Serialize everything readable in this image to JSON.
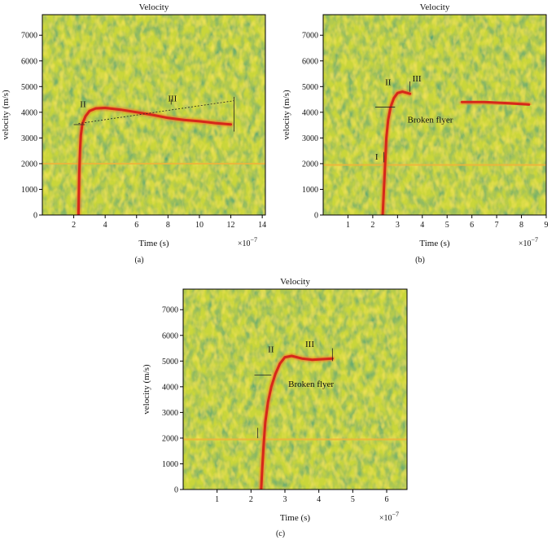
{
  "colors": {
    "noise_base": "#c9d63a",
    "noise_green": "#2f9f77",
    "noise_yellow": "#f3e45a",
    "trace": "#d6281a",
    "trace_light": "#ef7a2a",
    "constant_band": "#f0b43a",
    "axis": "#000000"
  },
  "chart_data": [
    {
      "type": "heatmap",
      "title": "Velocity",
      "xlabel": "Time (s)",
      "ylabel": "velocity (m/s)",
      "x_multiplier": "×10",
      "x_exponent": "−7",
      "panel_label": "(a)",
      "xlim": [
        0,
        14.2
      ],
      "ylim": [
        0,
        7800
      ],
      "xticks": [
        2,
        4,
        6,
        8,
        10,
        12,
        14
      ],
      "yticks": [
        0,
        1000,
        2000,
        3000,
        4000,
        5000,
        6000,
        7000
      ],
      "colormap": [
        "green",
        "yellow",
        "orange",
        "red"
      ],
      "constant_band_velocity": 2000,
      "series": [
        {
          "trace": [
            [
              2.3,
              0
            ],
            [
              2.32,
              700
            ],
            [
              2.35,
              1600
            ],
            [
              2.4,
              2500
            ],
            [
              2.45,
              3100
            ],
            [
              2.55,
              3550
            ],
            [
              2.75,
              3850
            ],
            [
              3.0,
              4050
            ],
            [
              3.4,
              4150
            ],
            [
              4.0,
              4170
            ],
            [
              5.0,
              4100
            ],
            [
              6.0,
              4000
            ],
            [
              7.0,
              3900
            ],
            [
              8.0,
              3780
            ],
            [
              9.0,
              3700
            ],
            [
              10.0,
              3650
            ],
            [
              11.0,
              3580
            ],
            [
              12.0,
              3530
            ]
          ]
        }
      ],
      "annotations": [
        {
          "text": "II",
          "x": 2.4,
          "y": 4200
        },
        {
          "text": "III",
          "x": 8.0,
          "y": 4420
        }
      ],
      "marker_lines": [
        {
          "x1": 2.0,
          "y1": 3520,
          "x2": 2.7,
          "y2": 3520
        },
        {
          "x1": 12.2,
          "y1": 3250,
          "x2": 12.2,
          "y2": 4600
        },
        {
          "x1": 2.3,
          "y1": 3560,
          "x2": 12.2,
          "y2": 4450
        },
        {
          "x1": 8.2,
          "y1": 4300,
          "x2": 8.2,
          "y2": 4500
        }
      ]
    },
    {
      "type": "heatmap",
      "title": "Velocity",
      "xlabel": "Time (s)",
      "ylabel": "velocity (m/s)",
      "x_multiplier": "×10",
      "x_exponent": "−7",
      "panel_label": "(b)",
      "xlim": [
        0,
        9
      ],
      "ylim": [
        0,
        7800
      ],
      "xticks": [
        1,
        2,
        3,
        4,
        5,
        6,
        7,
        8,
        9
      ],
      "yticks": [
        0,
        1000,
        2000,
        3000,
        4000,
        5000,
        6000,
        7000
      ],
      "colormap": [
        "green",
        "yellow",
        "orange",
        "red"
      ],
      "constant_band_velocity": 1950,
      "series": [
        {
          "trace": [
            [
              2.4,
              0
            ],
            [
              2.45,
              1000
            ],
            [
              2.5,
              2000
            ],
            [
              2.55,
              3000
            ],
            [
              2.62,
              3700
            ],
            [
              2.72,
              4200
            ],
            [
              2.85,
              4550
            ],
            [
              3.0,
              4750
            ],
            [
              3.2,
              4800
            ],
            [
              3.5,
              4720
            ]
          ]
        },
        {
          "trace": [
            [
              5.6,
              4400
            ],
            [
              6.5,
              4400
            ],
            [
              7.5,
              4350
            ],
            [
              8.3,
              4300
            ]
          ]
        }
      ],
      "annotations": [
        {
          "text": "I",
          "x": 2.1,
          "y": 2150
        },
        {
          "text": "II",
          "x": 2.5,
          "y": 5050
        },
        {
          "text": "III",
          "x": 3.6,
          "y": 5200
        },
        {
          "text": "Broken flyer",
          "x": 3.4,
          "y": 3600
        }
      ],
      "marker_lines": [
        {
          "x1": 2.1,
          "y1": 4200,
          "x2": 2.9,
          "y2": 4200
        },
        {
          "x1": 3.5,
          "y1": 4800,
          "x2": 3.5,
          "y2": 5200
        },
        {
          "x1": 2.45,
          "y1": 2050,
          "x2": 2.45,
          "y2": 2450
        }
      ]
    },
    {
      "type": "heatmap",
      "title": "Velocity",
      "xlabel": "Time (s)",
      "ylabel": "velocity (m/s)",
      "x_multiplier": "×10",
      "x_exponent": "−7",
      "panel_label": "(c)",
      "xlim": [
        0,
        6.6
      ],
      "ylim": [
        0,
        7800
      ],
      "xticks": [
        1,
        2,
        3,
        4,
        5,
        6
      ],
      "yticks": [
        0,
        1000,
        2000,
        3000,
        4000,
        5000,
        6000,
        7000
      ],
      "colormap": [
        "green",
        "yellow",
        "orange",
        "red"
      ],
      "constant_band_velocity": 1950,
      "series": [
        {
          "trace": [
            [
              2.3,
              0
            ],
            [
              2.33,
              800
            ],
            [
              2.37,
              1700
            ],
            [
              2.42,
              2600
            ],
            [
              2.5,
              3400
            ],
            [
              2.6,
              4000
            ],
            [
              2.72,
              4500
            ],
            [
              2.85,
              4900
            ],
            [
              3.0,
              5150
            ],
            [
              3.2,
              5200
            ],
            [
              3.5,
              5100
            ],
            [
              3.8,
              5050
            ],
            [
              4.2,
              5080
            ],
            [
              4.4,
              5100
            ]
          ]
        }
      ],
      "annotations": [
        {
          "text": "II",
          "x": 2.5,
          "y": 5350
        },
        {
          "text": "III",
          "x": 3.6,
          "y": 5550
        },
        {
          "text": "Broken flyer",
          "x": 3.1,
          "y": 4000
        }
      ],
      "marker_lines": [
        {
          "x1": 2.1,
          "y1": 4450,
          "x2": 2.6,
          "y2": 4450
        },
        {
          "x1": 4.4,
          "y1": 5000,
          "x2": 4.4,
          "y2": 5500
        },
        {
          "x1": 2.2,
          "y1": 2000,
          "x2": 2.2,
          "y2": 2400
        }
      ]
    }
  ]
}
